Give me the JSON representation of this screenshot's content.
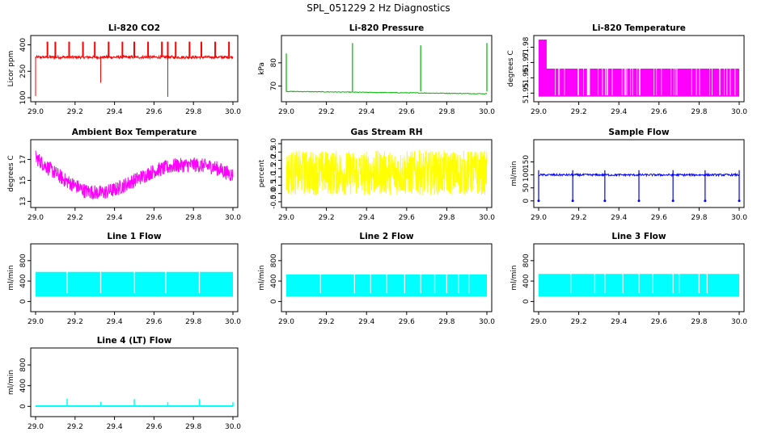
{
  "figure_title": "SPL_051229  2 Hz Diagnostics",
  "colors": {
    "red": "#ff0000",
    "green": "#00b400",
    "magenta": "#ff00ff",
    "yellow": "#ffff00",
    "blue": "#0000ff",
    "cyan": "#00ffff",
    "axis": "#000000"
  },
  "chart_data": [
    {
      "type": "line",
      "title": "Li-820 CO2",
      "ylabel": "Licor ppm",
      "color": "red",
      "pattern": "co2",
      "xlim": [
        29.0,
        30.0
      ],
      "ylim": [
        100,
        430
      ],
      "xticks": [
        29.0,
        29.2,
        29.4,
        29.6,
        29.8,
        30.0
      ],
      "xtick_labels": [
        "29.0",
        "29.2",
        "29.4",
        "29.6",
        "29.8",
        "30.0"
      ],
      "yticks": [
        100,
        250,
        400
      ],
      "ytick_labels": [
        "100",
        "250",
        "400"
      ],
      "baseline": 330,
      "noise": 8,
      "spikes_up": [
        29.06,
        29.1,
        29.17,
        29.24,
        29.3,
        29.37,
        29.44,
        29.5,
        29.57,
        29.64,
        29.67,
        29.71,
        29.78,
        29.84,
        29.91,
        29.98
      ],
      "spike_up_value": 418,
      "spikes_down": [
        {
          "x": 29.0,
          "y": 110
        },
        {
          "x": 29.33,
          "y": 185
        },
        {
          "x": 29.67,
          "y": 105
        }
      ]
    },
    {
      "type": "line",
      "title": "Li-820 Pressure",
      "ylabel": "kPa",
      "color": "green",
      "pattern": "pressure",
      "xlim": [
        29.0,
        30.0
      ],
      "ylim": [
        65,
        90
      ],
      "xticks": [
        29.0,
        29.2,
        29.4,
        29.6,
        29.8,
        30.0
      ],
      "xtick_labels": [
        "29.0",
        "29.2",
        "29.4",
        "29.6",
        "29.8",
        "30.0"
      ],
      "yticks": [
        70,
        80
      ],
      "ytick_labels": [
        "70",
        "80"
      ],
      "baseline_start": 67.7,
      "baseline_end": 66.7,
      "spikes": [
        {
          "x": 29.0,
          "y": 84
        },
        {
          "x": 29.33,
          "y": 88.5
        },
        {
          "x": 29.67,
          "y": 87.5
        },
        {
          "x": 30.0,
          "y": 88.5
        }
      ]
    },
    {
      "type": "line",
      "title": "Li-820 Temperature",
      "ylabel": "degrees C",
      "color": "magenta",
      "pattern": "ltemp",
      "xlim": [
        29.0,
        30.0
      ],
      "ylim": [
        51.947,
        51.985
      ],
      "xticks": [
        29.0,
        29.2,
        29.4,
        29.6,
        29.8,
        30.0
      ],
      "xtick_labels": [
        "29.0",
        "29.2",
        "29.4",
        "29.6",
        "29.8",
        "30.0"
      ],
      "yticks": [
        51.95,
        51.96,
        51.97,
        51.98
      ],
      "ytick_labels": [
        "51.95",
        "51.96",
        "51.97",
        "51.98"
      ],
      "level_low": 51.948,
      "level_high": 51.966,
      "initial_high": 51.985
    },
    {
      "type": "line",
      "title": "Ambient Box Temperature",
      "ylabel": "degrees C",
      "color": "magenta",
      "pattern": "boxtemp",
      "xlim": [
        29.0,
        30.0
      ],
      "ylim": [
        12.8,
        18.5
      ],
      "xticks": [
        29.0,
        29.2,
        29.4,
        29.6,
        29.8,
        30.0
      ],
      "xtick_labels": [
        "29.0",
        "29.2",
        "29.4",
        "29.6",
        "29.8",
        "30.0"
      ],
      "yticks": [
        13,
        15,
        17
      ],
      "ytick_labels": [
        "13",
        "15",
        "17"
      ],
      "trend_x": [
        29.0,
        29.05,
        29.15,
        29.25,
        29.33,
        29.4,
        29.5,
        29.6,
        29.7,
        29.8,
        29.9,
        30.0
      ],
      "trend_y": [
        17.2,
        16.4,
        15.0,
        14.0,
        13.8,
        14.1,
        15.0,
        15.9,
        16.4,
        16.5,
        16.3,
        15.5
      ],
      "band": 1.4
    },
    {
      "type": "line",
      "title": "Gas Stream RH",
      "ylabel": "percent",
      "color": "yellow",
      "pattern": "rh",
      "xlim": [
        29.0,
        30.0
      ],
      "ylim": [
        -0.6,
        3.0
      ],
      "xticks": [
        29.0,
        29.2,
        29.4,
        29.6,
        29.8,
        30.0
      ],
      "xtick_labels": [
        "29.0",
        "29.2",
        "29.4",
        "29.6",
        "29.8",
        "30.0"
      ],
      "yticks": [
        -0.5,
        0.0,
        0.5,
        1.0,
        1.5,
        2.0,
        2.5,
        3.0
      ],
      "ytick_labels": [
        "-0.5",
        "0.0",
        "0.5",
        "1.0",
        "1.5",
        "2.0",
        "2.5",
        "3.0"
      ],
      "low": -0.1,
      "high": 2.6
    },
    {
      "type": "line",
      "title": "Sample Flow",
      "ylabel": "ml/min",
      "color": "blue",
      "pattern": "sample",
      "xlim": [
        29.0,
        30.0
      ],
      "ylim": [
        -10,
        220
      ],
      "xticks": [
        29.0,
        29.2,
        29.4,
        29.6,
        29.8,
        30.0
      ],
      "xtick_labels": [
        "29.0",
        "29.2",
        "29.4",
        "29.6",
        "29.8",
        "30.0"
      ],
      "yticks": [
        0,
        50,
        100,
        150
      ],
      "ytick_labels": [
        "0",
        "50",
        "100",
        "150"
      ],
      "baseline": 100,
      "noise": 4,
      "drops": [
        29.0,
        29.17,
        29.33,
        29.5,
        29.67,
        29.83,
        30.0
      ],
      "drop_value": 0,
      "spike_value": 118
    },
    {
      "type": "line",
      "title": "Line 1 Flow",
      "ylabel": "ml/min",
      "color": "cyan",
      "pattern": "line1",
      "xlim": [
        29.0,
        30.0
      ],
      "ylim": [
        -120,
        1050
      ],
      "xticks": [
        29.0,
        29.2,
        29.4,
        29.6,
        29.8,
        30.0
      ],
      "xtick_labels": [
        "29.0",
        "29.2",
        "29.4",
        "29.6",
        "29.8",
        "30.0"
      ],
      "yticks": [
        0,
        400,
        800
      ],
      "ytick_labels": [
        "0",
        "400",
        "800"
      ],
      "low": 100,
      "high": 580,
      "gaps": [
        29.16,
        29.33,
        29.5,
        29.66,
        29.83
      ]
    },
    {
      "type": "line",
      "title": "Line 2 Flow",
      "ylabel": "ml/min",
      "color": "cyan",
      "pattern": "line2",
      "xlim": [
        29.0,
        30.0
      ],
      "ylim": [
        -120,
        1050
      ],
      "xticks": [
        29.0,
        29.2,
        29.4,
        29.6,
        29.8,
        30.0
      ],
      "xtick_labels": [
        "29.0",
        "29.2",
        "29.4",
        "29.6",
        "29.8",
        "30.0"
      ],
      "yticks": [
        0,
        400,
        800
      ],
      "ytick_labels": [
        "0",
        "400",
        "800"
      ],
      "low": 100,
      "high": 530,
      "gaps": [
        29.17,
        29.34,
        29.42,
        29.5,
        29.59,
        29.67,
        29.74,
        29.8,
        29.86,
        29.91
      ]
    },
    {
      "type": "line",
      "title": "Line 3 Flow",
      "ylabel": "ml/min",
      "color": "cyan",
      "pattern": "line3",
      "xlim": [
        29.0,
        30.0
      ],
      "ylim": [
        -120,
        1050
      ],
      "xticks": [
        29.0,
        29.2,
        29.4,
        29.6,
        29.8,
        30.0
      ],
      "xtick_labels": [
        "29.0",
        "29.2",
        "29.4",
        "29.6",
        "29.8",
        "30.0"
      ],
      "yticks": [
        0,
        400,
        800
      ],
      "ytick_labels": [
        "0",
        "400",
        "800"
      ],
      "low": 100,
      "high": 540,
      "gaps": [
        29.16,
        29.28,
        29.33,
        29.42,
        29.5,
        29.57,
        29.67,
        29.7,
        29.8,
        29.84
      ]
    },
    {
      "type": "line",
      "title": "Line 4 (LT) Flow",
      "ylabel": "ml/min",
      "color": "cyan",
      "pattern": "line4",
      "xlim": [
        29.0,
        30.0
      ],
      "ylim": [
        -120,
        1050
      ],
      "xticks": [
        29.0,
        29.2,
        29.4,
        29.6,
        29.8,
        30.0
      ],
      "xtick_labels": [
        "29.0",
        "29.2",
        "29.4",
        "29.6",
        "29.8",
        "30.0"
      ],
      "yticks": [
        0,
        400,
        800
      ],
      "ytick_labels": [
        "0",
        "400",
        "800"
      ],
      "baseline": 5,
      "spikes": [
        {
          "x": 29.16,
          "y": 150
        },
        {
          "x": 29.33,
          "y": 90
        },
        {
          "x": 29.5,
          "y": 140
        },
        {
          "x": 29.67,
          "y": 80
        },
        {
          "x": 29.83,
          "y": 140
        },
        {
          "x": 30.0,
          "y": 80
        }
      ]
    }
  ]
}
